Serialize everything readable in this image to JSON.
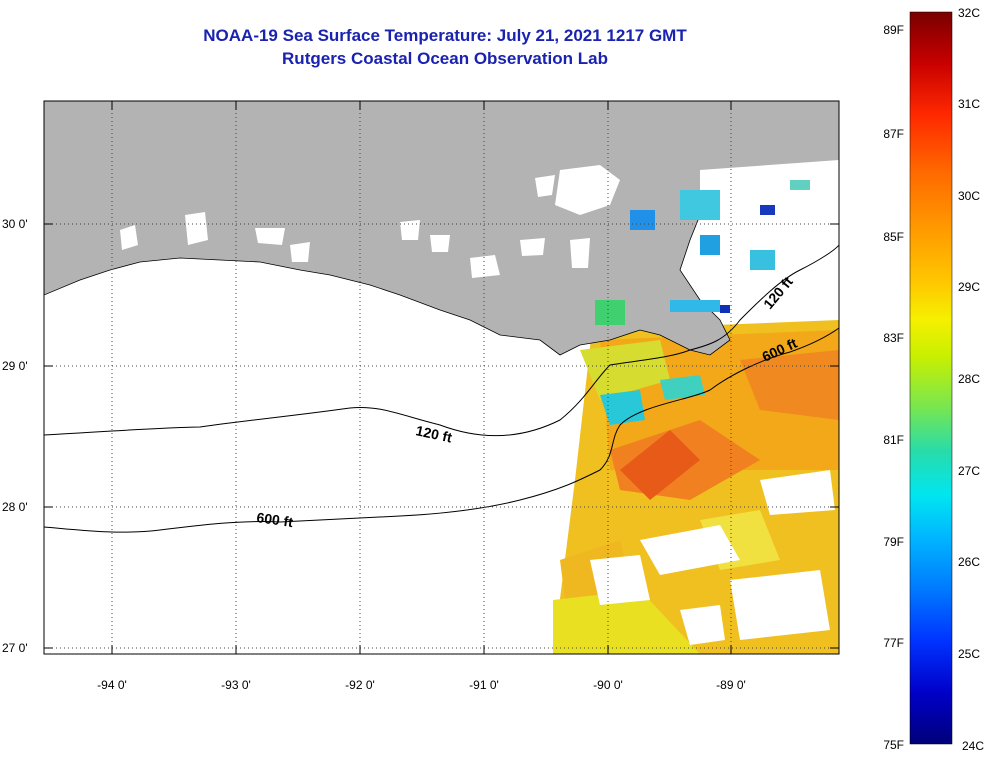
{
  "title": {
    "line1": "NOAA-19 Sea Surface Temperature:  July 21, 2021 1217 GMT",
    "line2": "Rutgers Coastal Ocean Observation Lab"
  },
  "map": {
    "lon_labels": [
      "-94 0'",
      "-93 0'",
      "-92 0'",
      "-91 0'",
      "-90 0'",
      "-89 0'"
    ],
    "lat_labels": [
      "30 0'",
      "29 0'",
      "28 0'",
      "27 0'"
    ],
    "contour_labels": [
      {
        "id": "c120w",
        "text": "120 ft"
      },
      {
        "id": "c600w",
        "text": "600 ft"
      },
      {
        "id": "c120e",
        "text": "120 ft"
      },
      {
        "id": "c600e",
        "text": "600 ft"
      }
    ],
    "land_color": "#b3b3b3",
    "water_color": "#ffffff"
  },
  "colorbar": {
    "fahrenheit_labels": [
      "89F",
      "87F",
      "85F",
      "83F",
      "81F",
      "79F",
      "77F",
      "75F"
    ],
    "celsius_labels": [
      "32C",
      "31C",
      "30C",
      "29C",
      "28C",
      "27C",
      "26C",
      "25C",
      "24C"
    ],
    "colors_top_to_bottom": [
      "#7a0000",
      "#c80000",
      "#ff2800",
      "#ff6a00",
      "#ff9c00",
      "#ffc800",
      "#f5f000",
      "#c8f000",
      "#78e650",
      "#28dcaa",
      "#00e6f0",
      "#00b4ff",
      "#0078ff",
      "#0032ff",
      "#0000c8",
      "#00007a"
    ]
  }
}
